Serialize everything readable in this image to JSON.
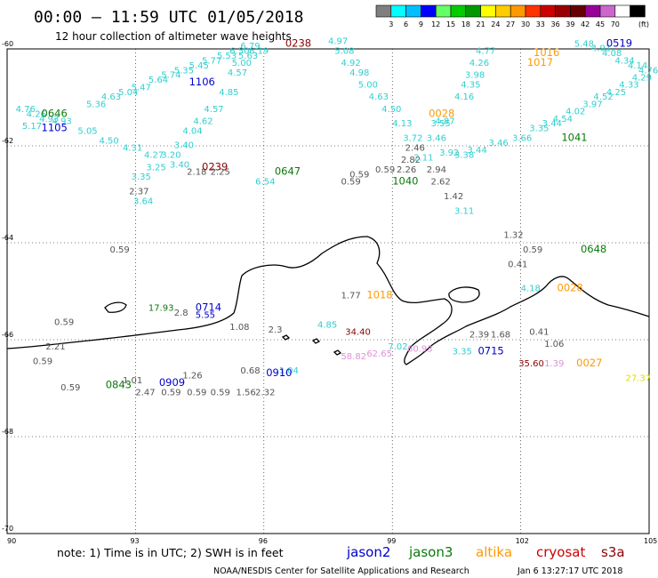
{
  "header": {
    "title": "00:00 – 11:59 UTC 01/05/2018",
    "subtitle": "12 hour collection of altimeter wave heights"
  },
  "legend": {
    "unit": "(ft)",
    "colors": [
      "#7f7f7f",
      "#00ffff",
      "#00bfff",
      "#0000ff",
      "#66ff66",
      "#00cc00",
      "#009900",
      "#ffff00",
      "#ffcc00",
      "#ff9900",
      "#ff3300",
      "#cc0000",
      "#990000",
      "#660000",
      "#990099",
      "#cc66cc",
      "#ffffff",
      "#000000"
    ],
    "labels": [
      "3",
      "6",
      "9",
      "12",
      "15",
      "18",
      "21",
      "24",
      "27",
      "30",
      "33",
      "36",
      "39",
      "42",
      "45",
      "70"
    ]
  },
  "map": {
    "lon_range": [
      90,
      105
    ],
    "lat_range": [
      -70,
      -60
    ],
    "x_ticks": [
      "90",
      "93",
      "96",
      "99",
      "102",
      "105"
    ],
    "y_ticks": [
      "-60",
      "-62",
      "-64",
      "-66",
      "-68",
      "-70"
    ]
  },
  "colors": {
    "cyan": "#2fcfcf",
    "gray": "#555555",
    "green": "#0a7a0a",
    "blue": "#0000cc",
    "orange": "#ff9900",
    "darkred": "#8b0000",
    "pink": "#e08fd8",
    "yellow": "#dddd00"
  },
  "observations": [
    {
      "t": "4.76",
      "lon": 90.2,
      "lat": -61.3,
      "c": "cyan"
    },
    {
      "t": "4.26",
      "lon": 90.45,
      "lat": -61.4,
      "c": "cyan"
    },
    {
      "t": "4.93",
      "lon": 90.75,
      "lat": -61.5,
      "c": "cyan"
    },
    {
      "t": "4.93",
      "lon": 91.05,
      "lat": -61.55,
      "c": "cyan"
    },
    {
      "t": "5.17",
      "lon": 90.35,
      "lat": -61.65,
      "c": "cyan"
    },
    {
      "t": "5.36",
      "lon": 91.85,
      "lat": -61.2,
      "c": "cyan"
    },
    {
      "t": "4.63",
      "lon": 92.2,
      "lat": -61.05,
      "c": "cyan"
    },
    {
      "t": "5.04",
      "lon": 92.6,
      "lat": -60.95,
      "c": "cyan"
    },
    {
      "t": "5.47",
      "lon": 92.9,
      "lat": -60.85,
      "c": "cyan"
    },
    {
      "t": "5.64",
      "lon": 93.3,
      "lat": -60.7,
      "c": "cyan"
    },
    {
      "t": "5.74",
      "lon": 93.6,
      "lat": -60.6,
      "c": "cyan"
    },
    {
      "t": "5.35",
      "lon": 93.9,
      "lat": -60.5,
      "c": "cyan"
    },
    {
      "t": "5.45",
      "lon": 94.25,
      "lat": -60.4,
      "c": "cyan"
    },
    {
      "t": "5.77",
      "lon": 94.55,
      "lat": -60.3,
      "c": "cyan"
    },
    {
      "t": "5.53",
      "lon": 94.9,
      "lat": -60.2,
      "c": "cyan"
    },
    {
      "t": "6.50",
      "lon": 95.2,
      "lat": -60.1,
      "c": "cyan"
    },
    {
      "t": "6.79",
      "lon": 95.45,
      "lat": -60.0,
      "c": "cyan"
    },
    {
      "t": "6.19",
      "lon": 95.65,
      "lat": -60.1,
      "c": "cyan"
    },
    {
      "t": "5.63",
      "lon": 95.4,
      "lat": -60.2,
      "c": "cyan"
    },
    {
      "t": "5.00",
      "lon": 95.25,
      "lat": -60.35,
      "c": "cyan"
    },
    {
      "t": "4.57",
      "lon": 95.15,
      "lat": -60.55,
      "c": "cyan"
    },
    {
      "t": "4.85",
      "lon": 94.95,
      "lat": -60.95,
      "c": "cyan"
    },
    {
      "t": "4.57",
      "lon": 94.6,
      "lat": -61.3,
      "c": "cyan"
    },
    {
      "t": "4.62",
      "lon": 94.35,
      "lat": -61.55,
      "c": "cyan"
    },
    {
      "t": "4.04",
      "lon": 94.1,
      "lat": -61.75,
      "c": "cyan"
    },
    {
      "t": "3.40",
      "lon": 93.9,
      "lat": -62.05,
      "c": "cyan"
    },
    {
      "t": "3.20",
      "lon": 93.6,
      "lat": -62.25,
      "c": "cyan"
    },
    {
      "t": "3.25",
      "lon": 93.25,
      "lat": -62.5,
      "c": "cyan"
    },
    {
      "t": "3.35",
      "lon": 92.9,
      "lat": -62.7,
      "c": "cyan"
    },
    {
      "t": "3.64",
      "lon": 92.95,
      "lat": -63.2,
      "c": "cyan"
    },
    {
      "t": "4.27",
      "lon": 93.2,
      "lat": -62.25,
      "c": "cyan"
    },
    {
      "t": "4.31",
      "lon": 92.7,
      "lat": -62.1,
      "c": "cyan"
    },
    {
      "t": "4.50",
      "lon": 92.15,
      "lat": -61.95,
      "c": "cyan"
    },
    {
      "t": "5.05",
      "lon": 91.65,
      "lat": -61.75,
      "c": "cyan"
    },
    {
      "t": "3.40",
      "lon": 93.8,
      "lat": -62.45,
      "c": "cyan"
    },
    {
      "t": "6.54",
      "lon": 95.8,
      "lat": -62.8,
      "c": "cyan"
    },
    {
      "t": "2.37",
      "lon": 92.85,
      "lat": -63.0,
      "c": "gray"
    },
    {
      "t": "2.25",
      "lon": 94.75,
      "lat": -62.6,
      "c": "gray"
    },
    {
      "t": "2.18",
      "lon": 94.2,
      "lat": -62.6,
      "c": "gray"
    },
    {
      "t": "0.59",
      "lon": 92.4,
      "lat": -64.2,
      "c": "gray"
    },
    {
      "t": "0.59",
      "lon": 91.1,
      "lat": -65.7,
      "c": "gray"
    },
    {
      "t": "2.21",
      "lon": 90.9,
      "lat": -66.2,
      "c": "gray"
    },
    {
      "t": "0.59",
      "lon": 90.6,
      "lat": -66.5,
      "c": "gray"
    },
    {
      "t": "0.59",
      "lon": 91.25,
      "lat": -67.05,
      "c": "gray"
    },
    {
      "t": "17.93",
      "lon": 93.3,
      "lat": -65.4,
      "c": "green"
    },
    {
      "t": "2.8",
      "lon": 93.9,
      "lat": -65.5,
      "c": "gray"
    },
    {
      "t": "5.55",
      "lon": 94.4,
      "lat": -65.55,
      "c": "blue"
    },
    {
      "t": "1.08",
      "lon": 95.2,
      "lat": -65.8,
      "c": "gray"
    },
    {
      "t": "2.3",
      "lon": 96.1,
      "lat": -65.85,
      "c": "gray"
    },
    {
      "t": "1.26",
      "lon": 94.1,
      "lat": -66.8,
      "c": "gray"
    },
    {
      "t": "1.01",
      "lon": 92.7,
      "lat": -66.9,
      "c": "gray"
    },
    {
      "t": "2.47",
      "lon": 93.0,
      "lat": -67.15,
      "c": "gray"
    },
    {
      "t": "0.59",
      "lon": 93.6,
      "lat": -67.15,
      "c": "gray"
    },
    {
      "t": "0.59",
      "lon": 94.2,
      "lat": -67.15,
      "c": "gray"
    },
    {
      "t": "0.59",
      "lon": 94.75,
      "lat": -67.15,
      "c": "gray"
    },
    {
      "t": "1.56",
      "lon": 95.35,
      "lat": -67.15,
      "c": "gray"
    },
    {
      "t": "2.32",
      "lon": 95.8,
      "lat": -67.15,
      "c": "gray"
    },
    {
      "t": "0.68",
      "lon": 95.45,
      "lat": -66.7,
      "c": "gray"
    },
    {
      "t": "1.04",
      "lon": 96.35,
      "lat": -66.7,
      "c": "cyan"
    },
    {
      "t": "1.77",
      "lon": 97.8,
      "lat": -65.15,
      "c": "gray"
    },
    {
      "t": "4.85",
      "lon": 97.25,
      "lat": -65.75,
      "c": "cyan"
    },
    {
      "t": "34.40",
      "lon": 97.9,
      "lat": -65.9,
      "c": "darkred"
    },
    {
      "t": "58.82",
      "lon": 97.8,
      "lat": -66.4,
      "c": "pink"
    },
    {
      "t": "62.65",
      "lon": 98.4,
      "lat": -66.35,
      "c": "pink"
    },
    {
      "t": "7.02",
      "lon": 98.9,
      "lat": -66.2,
      "c": "cyan"
    },
    {
      "t": "60.93",
      "lon": 99.35,
      "lat": -66.25,
      "c": "pink"
    },
    {
      "t": "3.35",
      "lon": 100.4,
      "lat": -66.3,
      "c": "cyan"
    },
    {
      "t": "2.39",
      "lon": 100.8,
      "lat": -65.95,
      "c": "gray"
    },
    {
      "t": "1.68",
      "lon": 101.3,
      "lat": -65.95,
      "c": "gray"
    },
    {
      "t": "0.41",
      "lon": 102.2,
      "lat": -65.9,
      "c": "gray"
    },
    {
      "t": "1.06",
      "lon": 102.55,
      "lat": -66.15,
      "c": "gray"
    },
    {
      "t": "35.60",
      "lon": 101.95,
      "lat": -66.55,
      "c": "darkred"
    },
    {
      "t": "1.39",
      "lon": 102.55,
      "lat": -66.55,
      "c": "pink"
    },
    {
      "t": "4.18",
      "lon": 102.0,
      "lat": -65.0,
      "c": "cyan"
    },
    {
      "t": "0.41",
      "lon": 101.7,
      "lat": -64.5,
      "c": "gray"
    },
    {
      "t": "0.59",
      "lon": 102.05,
      "lat": -64.2,
      "c": "gray"
    },
    {
      "t": "1.32",
      "lon": 101.6,
      "lat": -63.9,
      "c": "gray"
    },
    {
      "t": "3.11",
      "lon": 100.45,
      "lat": -63.4,
      "c": "cyan"
    },
    {
      "t": "1.42",
      "lon": 100.2,
      "lat": -63.1,
      "c": "gray"
    },
    {
      "t": "2.62",
      "lon": 99.9,
      "lat": -62.8,
      "c": "gray"
    },
    {
      "t": "2.94",
      "lon": 99.8,
      "lat": -62.55,
      "c": "gray"
    },
    {
      "t": "2.26",
      "lon": 99.1,
      "lat": -62.55,
      "c": "gray"
    },
    {
      "t": "0.59",
      "lon": 98.6,
      "lat": -62.55,
      "c": "gray"
    },
    {
      "t": "0.59",
      "lon": 97.8,
      "lat": -62.8,
      "c": "gray"
    },
    {
      "t": "0.59",
      "lon": 98.0,
      "lat": -62.65,
      "c": "gray"
    },
    {
      "t": "2.82",
      "lon": 99.2,
      "lat": -62.35,
      "c": "gray"
    },
    {
      "t": "2.46",
      "lon": 99.3,
      "lat": -62.1,
      "c": "gray"
    },
    {
      "t": "2.11",
      "lon": 99.5,
      "lat": -62.3,
      "c": "cyan"
    },
    {
      "t": "3.72",
      "lon": 99.25,
      "lat": -61.9,
      "c": "cyan"
    },
    {
      "t": "3.46",
      "lon": 99.8,
      "lat": -61.9,
      "c": "cyan"
    },
    {
      "t": "3.92",
      "lon": 100.1,
      "lat": -62.2,
      "c": "cyan"
    },
    {
      "t": "4.87",
      "lon": 100.0,
      "lat": -61.55,
      "c": "cyan"
    },
    {
      "t": "3.55",
      "lon": 99.9,
      "lat": -61.6,
      "c": "cyan"
    },
    {
      "t": "4.13",
      "lon": 99.0,
      "lat": -61.6,
      "c": "cyan"
    },
    {
      "t": "4.50",
      "lon": 98.75,
      "lat": -61.3,
      "c": "cyan"
    },
    {
      "t": "4.63",
      "lon": 98.45,
      "lat": -61.05,
      "c": "cyan"
    },
    {
      "t": "5.00",
      "lon": 98.2,
      "lat": -60.8,
      "c": "cyan"
    },
    {
      "t": "4.98",
      "lon": 98.0,
      "lat": -60.55,
      "c": "cyan"
    },
    {
      "t": "4.92",
      "lon": 97.8,
      "lat": -60.35,
      "c": "cyan"
    },
    {
      "t": "5.08",
      "lon": 97.65,
      "lat": -60.1,
      "c": "cyan"
    },
    {
      "t": "4.97",
      "lon": 97.5,
      "lat": -59.9,
      "c": "cyan"
    },
    {
      "t": "4.77",
      "lon": 100.95,
      "lat": -60.1,
      "c": "cyan"
    },
    {
      "t": "4.26",
      "lon": 100.8,
      "lat": -60.35,
      "c": "cyan"
    },
    {
      "t": "3.98",
      "lon": 100.7,
      "lat": -60.6,
      "c": "cyan"
    },
    {
      "t": "4.35",
      "lon": 100.6,
      "lat": -60.8,
      "c": "cyan"
    },
    {
      "t": "4.16",
      "lon": 100.45,
      "lat": -61.05,
      "c": "cyan"
    },
    {
      "t": "3.38",
      "lon": 100.45,
      "lat": -62.25,
      "c": "cyan"
    },
    {
      "t": "3.44",
      "lon": 100.75,
      "lat": -62.15,
      "c": "cyan"
    },
    {
      "t": "3.46",
      "lon": 101.25,
      "lat": -62.0,
      "c": "cyan"
    },
    {
      "t": "3.66",
      "lon": 101.8,
      "lat": -61.9,
      "c": "cyan"
    },
    {
      "t": "3.35",
      "lon": 102.2,
      "lat": -61.7,
      "c": "cyan"
    },
    {
      "t": "3.44",
      "lon": 102.5,
      "lat": -61.6,
      "c": "cyan"
    },
    {
      "t": "4.54",
      "lon": 102.75,
      "lat": -61.5,
      "c": "cyan"
    },
    {
      "t": "4.02",
      "lon": 103.05,
      "lat": -61.35,
      "c": "cyan"
    },
    {
      "t": "3.97",
      "lon": 103.45,
      "lat": -61.2,
      "c": "cyan"
    },
    {
      "t": "4.52",
      "lon": 103.7,
      "lat": -61.05,
      "c": "cyan"
    },
    {
      "t": "4.25",
      "lon": 104.0,
      "lat": -60.95,
      "c": "cyan"
    },
    {
      "t": "4.33",
      "lon": 104.3,
      "lat": -60.8,
      "c": "cyan"
    },
    {
      "t": "4.29",
      "lon": 104.6,
      "lat": -60.65,
      "c": "cyan"
    },
    {
      "t": "4.76",
      "lon": 104.75,
      "lat": -60.5,
      "c": "cyan"
    },
    {
      "t": "4.14",
      "lon": 104.5,
      "lat": -60.4,
      "c": "cyan"
    },
    {
      "t": "4.34",
      "lon": 104.2,
      "lat": -60.3,
      "c": "cyan"
    },
    {
      "t": "4.08",
      "lon": 103.9,
      "lat": -60.15,
      "c": "cyan"
    },
    {
      "t": "4.91",
      "lon": 103.65,
      "lat": -60.05,
      "c": "cyan"
    },
    {
      "t": "5.48",
      "lon": 103.25,
      "lat": -59.95,
      "c": "cyan"
    },
    {
      "t": "27.37",
      "lon": 104.45,
      "lat": -66.85,
      "c": "yellow"
    }
  ],
  "time_labels": [
    {
      "t": "0238",
      "lon": 96.5,
      "lat": -59.95,
      "c": "darkred"
    },
    {
      "t": "0646",
      "lon": 90.8,
      "lat": -61.4,
      "c": "green"
    },
    {
      "t": "1105",
      "lon": 90.8,
      "lat": -61.7,
      "c": "blue"
    },
    {
      "t": "1106",
      "lon": 94.25,
      "lat": -60.75,
      "c": "blue"
    },
    {
      "t": "0239",
      "lon": 94.55,
      "lat": -62.5,
      "c": "darkred"
    },
    {
      "t": "0647",
      "lon": 96.25,
      "lat": -62.6,
      "c": "green"
    },
    {
      "t": "0028",
      "lon": 99.85,
      "lat": -61.4,
      "c": "orange"
    },
    {
      "t": "1040",
      "lon": 99.0,
      "lat": -62.8,
      "c": "green"
    },
    {
      "t": "1016",
      "lon": 102.3,
      "lat": -60.15,
      "c": "orange"
    },
    {
      "t": "1017",
      "lon": 102.15,
      "lat": -60.35,
      "c": "orange"
    },
    {
      "t": "0519",
      "lon": 104.0,
      "lat": -59.95,
      "c": "blue"
    },
    {
      "t": "1041",
      "lon": 102.95,
      "lat": -61.9,
      "c": "green"
    },
    {
      "t": "0648",
      "lon": 103.4,
      "lat": -64.2,
      "c": "green"
    },
    {
      "t": "0028",
      "lon": 102.85,
      "lat": -65.0,
      "c": "orange"
    },
    {
      "t": "1018",
      "lon": 98.4,
      "lat": -65.15,
      "c": "orange"
    },
    {
      "t": "0714",
      "lon": 94.4,
      "lat": -65.4,
      "c": "blue"
    },
    {
      "t": "0715",
      "lon": 101.0,
      "lat": -66.3,
      "c": "blue"
    },
    {
      "t": "0027",
      "lon": 103.3,
      "lat": -66.55,
      "c": "orange"
    },
    {
      "t": "0910",
      "lon": 96.05,
      "lat": -66.75,
      "c": "blue"
    },
    {
      "t": "0909",
      "lon": 93.55,
      "lat": -66.95,
      "c": "blue"
    },
    {
      "t": "0843",
      "lon": 92.3,
      "lat": -67.0,
      "c": "green"
    }
  ],
  "footer": {
    "note": "note:  1) Time is in UTC;  2) SWH is in feet",
    "satellites": [
      {
        "name": "jason2",
        "color": "#0000cc"
      },
      {
        "name": "jason3",
        "color": "#0a7a0a"
      },
      {
        "name": "altika",
        "color": "#ff9900"
      },
      {
        "name": "cryosat",
        "color": "#cc0000"
      },
      {
        "name": "s3a",
        "color": "#8b0000"
      }
    ],
    "credit": "NOAA/NESDIS Center for Satellite Applications and Research",
    "timestamp": "Jan  6 13:27:17 UTC 2018"
  }
}
